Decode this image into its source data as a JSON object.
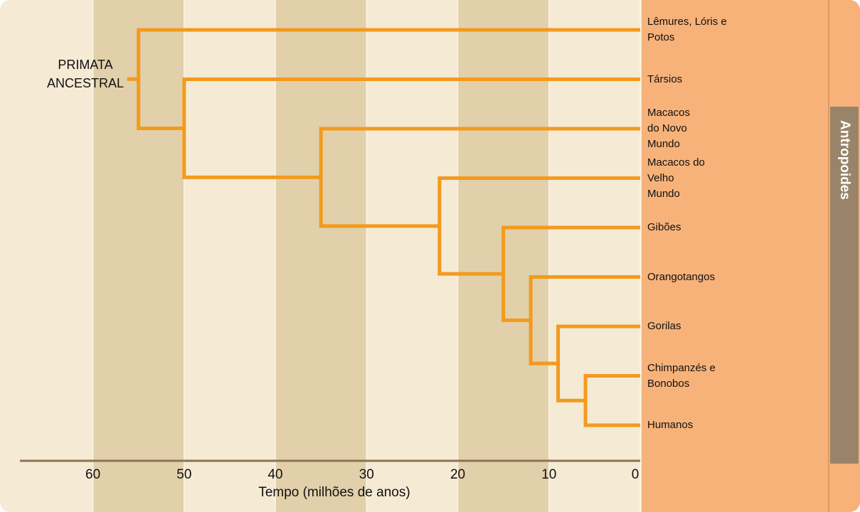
{
  "axis": {
    "label": "Tempo (milhões de anos)",
    "xlim": [
      68,
      0
    ],
    "xticks": [
      60,
      50,
      40,
      30,
      20,
      10,
      0
    ]
  },
  "root_label": [
    "PRIMATA",
    "ANCESTRAL"
  ],
  "side_label": "Antropoides",
  "tree": {
    "time": 55,
    "children": [
      {
        "label": [
          "Lêmures, Lóris e",
          "Potos"
        ]
      },
      {
        "time": 50,
        "children": [
          {
            "label": [
              "Társios"
            ]
          },
          {
            "time": 35,
            "children": [
              {
                "label": [
                  "Macacos",
                  "do Novo",
                  "Mundo"
                ]
              },
              {
                "time": 22,
                "children": [
                  {
                    "label": [
                      "Macacos do",
                      "Velho",
                      "Mundo"
                    ]
                  },
                  {
                    "time": 15,
                    "children": [
                      {
                        "label": [
                          "Gibões"
                        ]
                      },
                      {
                        "time": 12,
                        "children": [
                          {
                            "label": [
                              "Orangotangos"
                            ]
                          },
                          {
                            "time": 9,
                            "children": [
                              {
                                "label": [
                                  "Gorilas"
                                ]
                              },
                              {
                                "time": 6,
                                "children": [
                                  {
                                    "label": [
                                      "Chimpanzés e",
                                      "Bonobos"
                                    ]
                                  },
                                  {
                                    "label": [
                                      "Humanos"
                                    ]
                                  }
                                ]
                              }
                            ]
                          }
                        ]
                      }
                    ]
                  }
                ]
              }
            ]
          }
        ]
      }
    ]
  }
}
